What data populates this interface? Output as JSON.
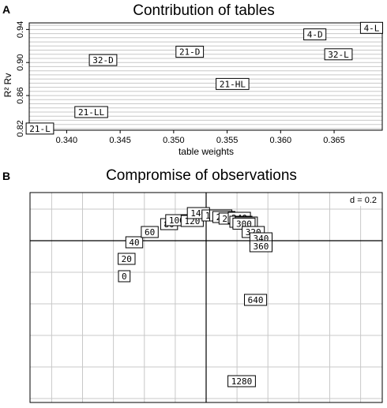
{
  "chart_data": [
    {
      "panel": "A",
      "type": "scatter",
      "title": "Contribution of tables",
      "xlabel": "table weights",
      "ylabel": "R² Rv",
      "xlim": [
        0.3365,
        0.3695
      ],
      "ylim": [
        0.818,
        0.948
      ],
      "x_ticks": [
        "0.340",
        "0.345",
        "0.350",
        "0.355",
        "0.360",
        "0.365"
      ],
      "y_ticks": [
        "0.82",
        "0.86",
        "0.90",
        "0.94"
      ],
      "grid": true,
      "points": [
        {
          "label": "4-L",
          "x": 0.3685,
          "y": 0.942
        },
        {
          "label": "4-D",
          "x": 0.3632,
          "y": 0.934
        },
        {
          "label": "32-L",
          "x": 0.3654,
          "y": 0.91
        },
        {
          "label": "21-D",
          "x": 0.3515,
          "y": 0.913
        },
        {
          "label": "32-D",
          "x": 0.3434,
          "y": 0.903
        },
        {
          "label": "21-HL",
          "x": 0.3555,
          "y": 0.874
        },
        {
          "label": "21-LL",
          "x": 0.3423,
          "y": 0.84
        },
        {
          "label": "21-L",
          "x": 0.3375,
          "y": 0.82
        }
      ]
    },
    {
      "panel": "B",
      "type": "scatter",
      "title": "Compromise of observations",
      "scale_label": "d = 0.2",
      "xlim": [
        -1.14,
        1.14
      ],
      "ylim": [
        -1.025,
        0.305
      ],
      "grid_step": 0.2,
      "grid": true,
      "points": [
        {
          "label": "0",
          "x": -0.53,
          "y": -0.225
        },
        {
          "label": "20",
          "x": -0.515,
          "y": -0.115
        },
        {
          "label": "40",
          "x": -0.465,
          "y": -0.01
        },
        {
          "label": "60",
          "x": -0.365,
          "y": 0.055
        },
        {
          "label": "80",
          "x": -0.24,
          "y": 0.105
        },
        {
          "label": "100",
          "x": -0.19,
          "y": 0.13
        },
        {
          "label": "120",
          "x": -0.09,
          "y": 0.125
        },
        {
          "label": "140",
          "x": -0.05,
          "y": 0.175
        },
        {
          "label": "160",
          "x": 0.045,
          "y": 0.16
        },
        {
          "label": "180",
          "x": 0.095,
          "y": 0.16
        },
        {
          "label": "200",
          "x": 0.115,
          "y": 0.15
        },
        {
          "label": "220",
          "x": 0.155,
          "y": 0.14
        },
        {
          "label": "240",
          "x": 0.215,
          "y": 0.145
        },
        {
          "label": "260",
          "x": 0.225,
          "y": 0.12
        },
        {
          "label": "280",
          "x": 0.26,
          "y": 0.115
        },
        {
          "label": "300",
          "x": 0.245,
          "y": 0.108
        },
        {
          "label": "320",
          "x": 0.305,
          "y": 0.055
        },
        {
          "label": "340",
          "x": 0.355,
          "y": 0.015
        },
        {
          "label": "360",
          "x": 0.355,
          "y": -0.035
        },
        {
          "label": "640",
          "x": 0.32,
          "y": -0.375
        },
        {
          "label": "1280",
          "x": 0.23,
          "y": -0.89
        }
      ]
    }
  ]
}
